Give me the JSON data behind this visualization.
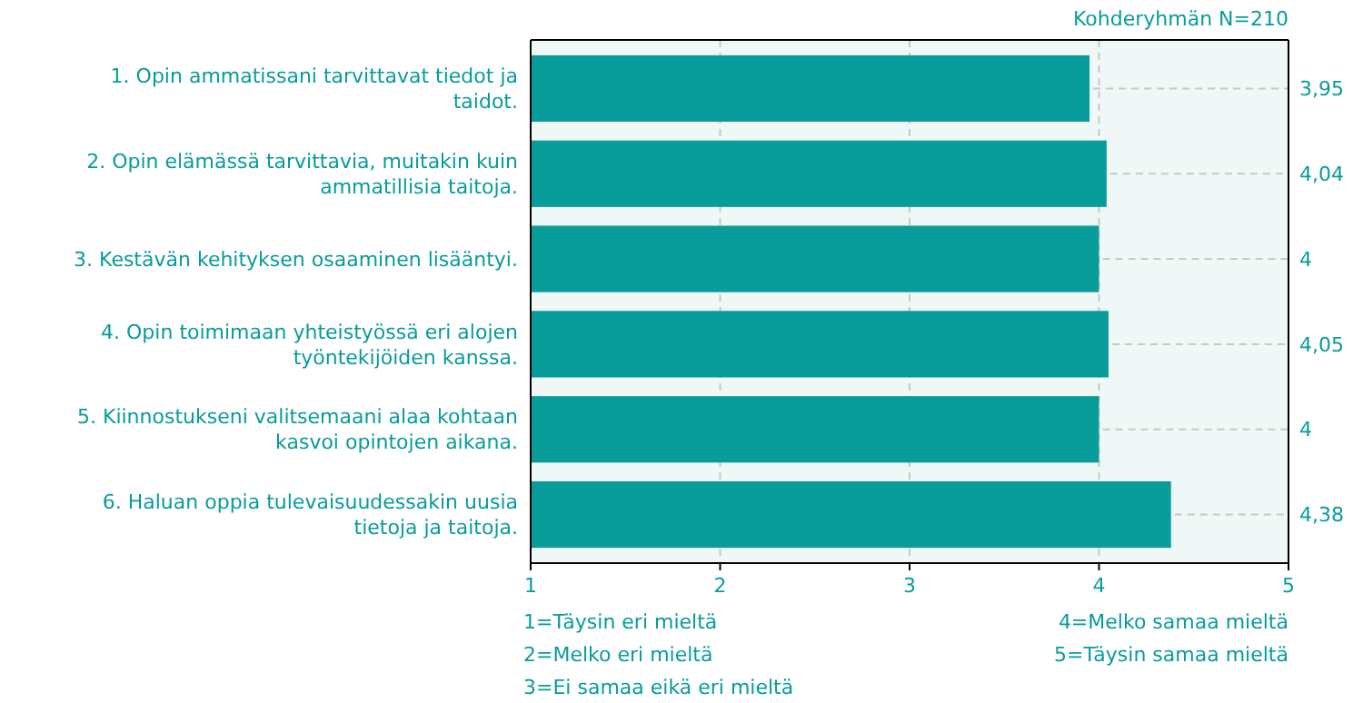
{
  "chart_data": {
    "type": "bar",
    "orientation": "horizontal",
    "categories": [
      "1. Opin ammatissani tarvittavat tiedot ja taidot.",
      "2. Opin elämässä tarvittavia, muitakin kuin ammatillisia taitoja.",
      "3. Kestävän kehityksen osaaminen lisääntyi.",
      "4. Opin toimimaan yhteistyössä eri alojen työntekijöiden kanssa.",
      "5. Kiinnostukseni valitsemaani alaa kohtaan kasvoi opintojen aikana.",
      "6. Haluan oppia tulevaisuudessakin uusia tietoja ja taitoja."
    ],
    "values": [
      3.95,
      4.04,
      4.0,
      4.05,
      4.0,
      4.38
    ],
    "value_labels": [
      "3,95",
      "4,04",
      "4",
      "4,05",
      "4",
      "4,38"
    ],
    "color": "#089c9a",
    "xlim": [
      1,
      5
    ],
    "xticks": [
      1,
      2,
      3,
      4,
      5
    ],
    "grid": "x",
    "annotations": [
      "Kohderyhmän N=210",
      "1=Täysin eri mieltä",
      "2=Melko eri mieltä",
      "3=Ei samaa eikä eri mieltä",
      "4=Melko samaa mieltä",
      "5=Täysin samaa mieltä"
    ]
  }
}
